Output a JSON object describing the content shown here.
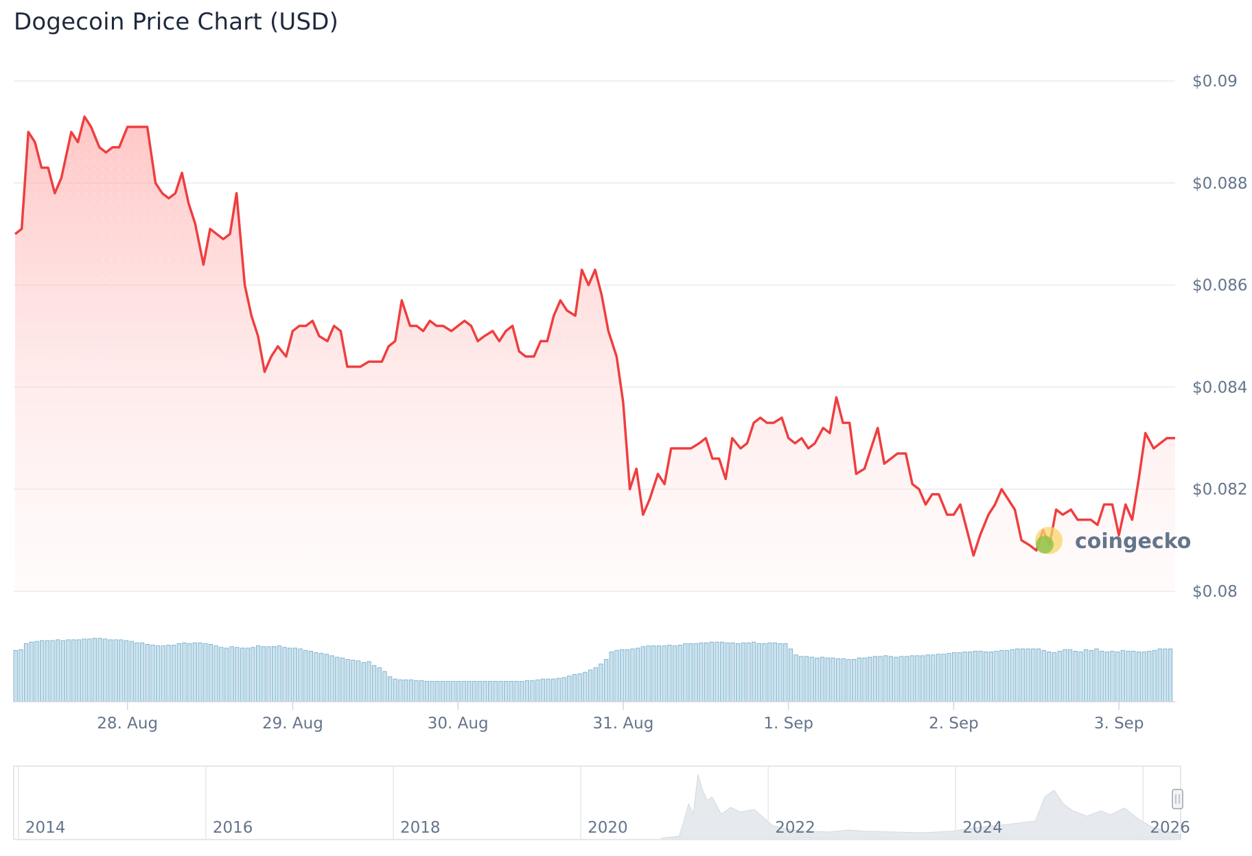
{
  "title": "Dogecoin Price Chart (USD)",
  "brand": "coingecko",
  "colors": {
    "line": "#ef3e3e",
    "fill": "#ffcccc",
    "volume": "#9cc8de",
    "grid": "#e5e7eb"
  },
  "chart_data": {
    "type": "line",
    "title": "Dogecoin Price Chart (USD)",
    "xlabel": "",
    "ylabel": "",
    "ylim": [
      0.08,
      0.09
    ],
    "yticks": [
      "$0.09",
      "$0.088",
      "$0.086",
      "$0.084",
      "$0.082",
      "$0.08"
    ],
    "ytick_values": [
      0.09,
      0.088,
      0.086,
      0.084,
      0.082,
      0.08
    ],
    "xticks": [
      "28. Aug",
      "29. Aug",
      "30. Aug",
      "31. Aug",
      "1. Sep",
      "2. Sep",
      "3. Sep"
    ],
    "x_range_days": [
      -0.68,
      6.34
    ],
    "grid": true,
    "series": [
      {
        "values": [
          [
            -0.68,
            0.087
          ],
          [
            -0.64,
            0.0871
          ],
          [
            -0.6,
            0.089
          ],
          [
            -0.56,
            0.0888
          ],
          [
            -0.52,
            0.0883
          ],
          [
            -0.48,
            0.0883
          ],
          [
            -0.44,
            0.0878
          ],
          [
            -0.4,
            0.0881
          ],
          [
            -0.34,
            0.089
          ],
          [
            -0.3,
            0.0888
          ],
          [
            -0.26,
            0.0893
          ],
          [
            -0.22,
            0.0891
          ],
          [
            -0.17,
            0.0887
          ],
          [
            -0.13,
            0.0886
          ],
          [
            -0.09,
            0.0887
          ],
          [
            -0.05,
            0.0887
          ],
          [
            0.0,
            0.0891
          ],
          [
            0.04,
            0.0891
          ],
          [
            0.08,
            0.0891
          ],
          [
            0.12,
            0.0891
          ],
          [
            0.17,
            0.088
          ],
          [
            0.21,
            0.0878
          ],
          [
            0.25,
            0.0877
          ],
          [
            0.29,
            0.0878
          ],
          [
            0.33,
            0.0882
          ],
          [
            0.37,
            0.0876
          ],
          [
            0.41,
            0.0872
          ],
          [
            0.46,
            0.0864
          ],
          [
            0.5,
            0.0871
          ],
          [
            0.54,
            0.087
          ],
          [
            0.58,
            0.0869
          ],
          [
            0.62,
            0.087
          ],
          [
            0.66,
            0.0878
          ],
          [
            0.71,
            0.086
          ],
          [
            0.75,
            0.0854
          ],
          [
            0.79,
            0.085
          ],
          [
            0.83,
            0.0843
          ],
          [
            0.87,
            0.0846
          ],
          [
            0.91,
            0.0848
          ],
          [
            0.96,
            0.0846
          ],
          [
            1.0,
            0.0851
          ],
          [
            1.04,
            0.0852
          ],
          [
            1.08,
            0.0852
          ],
          [
            1.12,
            0.0853
          ],
          [
            1.16,
            0.085
          ],
          [
            1.21,
            0.0849
          ],
          [
            1.25,
            0.0852
          ],
          [
            1.29,
            0.0851
          ],
          [
            1.33,
            0.0844
          ],
          [
            1.37,
            0.0844
          ],
          [
            1.41,
            0.0844
          ],
          [
            1.46,
            0.0845
          ],
          [
            1.5,
            0.0845
          ],
          [
            1.54,
            0.0845
          ],
          [
            1.58,
            0.0848
          ],
          [
            1.62,
            0.0849
          ],
          [
            1.66,
            0.0857
          ],
          [
            1.71,
            0.0852
          ],
          [
            1.75,
            0.0852
          ],
          [
            1.79,
            0.0851
          ],
          [
            1.83,
            0.0853
          ],
          [
            1.87,
            0.0852
          ],
          [
            1.91,
            0.0852
          ],
          [
            1.96,
            0.0851
          ],
          [
            2.0,
            0.0852
          ],
          [
            2.04,
            0.0853
          ],
          [
            2.08,
            0.0852
          ],
          [
            2.12,
            0.0849
          ],
          [
            2.16,
            0.085
          ],
          [
            2.21,
            0.0851
          ],
          [
            2.25,
            0.0849
          ],
          [
            2.29,
            0.0851
          ],
          [
            2.33,
            0.0852
          ],
          [
            2.37,
            0.0847
          ],
          [
            2.41,
            0.0846
          ],
          [
            2.46,
            0.0846
          ],
          [
            2.5,
            0.0849
          ],
          [
            2.54,
            0.0849
          ],
          [
            2.58,
            0.0854
          ],
          [
            2.62,
            0.0857
          ],
          [
            2.66,
            0.0855
          ],
          [
            2.71,
            0.0854
          ],
          [
            2.75,
            0.0863
          ],
          [
            2.79,
            0.086
          ],
          [
            2.83,
            0.0863
          ],
          [
            2.87,
            0.0858
          ],
          [
            2.91,
            0.0851
          ],
          [
            2.96,
            0.0846
          ],
          [
            3.0,
            0.0837
          ],
          [
            3.04,
            0.082
          ],
          [
            3.08,
            0.0824
          ],
          [
            3.12,
            0.0815
          ],
          [
            3.16,
            0.0818
          ],
          [
            3.21,
            0.0823
          ],
          [
            3.25,
            0.0821
          ],
          [
            3.29,
            0.0828
          ],
          [
            3.33,
            0.0828
          ],
          [
            3.37,
            0.0828
          ],
          [
            3.41,
            0.0828
          ],
          [
            3.46,
            0.0829
          ],
          [
            3.5,
            0.083
          ],
          [
            3.54,
            0.0826
          ],
          [
            3.58,
            0.0826
          ],
          [
            3.62,
            0.0822
          ],
          [
            3.66,
            0.083
          ],
          [
            3.71,
            0.0828
          ],
          [
            3.75,
            0.0829
          ],
          [
            3.79,
            0.0833
          ],
          [
            3.83,
            0.0834
          ],
          [
            3.87,
            0.0833
          ],
          [
            3.91,
            0.0833
          ],
          [
            3.96,
            0.0834
          ],
          [
            4.0,
            0.083
          ],
          [
            4.04,
            0.0829
          ],
          [
            4.08,
            0.083
          ],
          [
            4.12,
            0.0828
          ],
          [
            4.16,
            0.0829
          ],
          [
            4.21,
            0.0832
          ],
          [
            4.25,
            0.0831
          ],
          [
            4.29,
            0.0838
          ],
          [
            4.33,
            0.0833
          ],
          [
            4.37,
            0.0833
          ],
          [
            4.41,
            0.0823
          ],
          [
            4.46,
            0.0824
          ],
          [
            4.5,
            0.0828
          ],
          [
            4.54,
            0.0832
          ],
          [
            4.58,
            0.0825
          ],
          [
            4.62,
            0.0826
          ],
          [
            4.66,
            0.0827
          ],
          [
            4.71,
            0.0827
          ],
          [
            4.75,
            0.0821
          ],
          [
            4.79,
            0.082
          ],
          [
            4.83,
            0.0817
          ],
          [
            4.87,
            0.0819
          ],
          [
            4.91,
            0.0819
          ],
          [
            4.96,
            0.0815
          ],
          [
            5.0,
            0.0815
          ],
          [
            5.04,
            0.0817
          ],
          [
            5.08,
            0.0812
          ],
          [
            5.12,
            0.0807
          ],
          [
            5.16,
            0.0811
          ],
          [
            5.21,
            0.0815
          ],
          [
            5.25,
            0.0817
          ],
          [
            5.29,
            0.082
          ],
          [
            5.33,
            0.0818
          ],
          [
            5.37,
            0.0816
          ],
          [
            5.41,
            0.081
          ],
          [
            5.46,
            0.0809
          ],
          [
            5.5,
            0.0808
          ],
          [
            5.54,
            0.0812
          ],
          [
            5.58,
            0.0809
          ],
          [
            5.62,
            0.0816
          ],
          [
            5.66,
            0.0815
          ],
          [
            5.71,
            0.0816
          ],
          [
            5.75,
            0.0814
          ],
          [
            5.79,
            0.0814
          ],
          [
            5.83,
            0.0814
          ],
          [
            5.87,
            0.0813
          ],
          [
            5.91,
            0.0817
          ],
          [
            5.96,
            0.0817
          ],
          [
            6.0,
            0.0811
          ],
          [
            6.04,
            0.0817
          ],
          [
            6.08,
            0.0814
          ],
          [
            6.12,
            0.0822
          ],
          [
            6.16,
            0.0831
          ],
          [
            6.21,
            0.0828
          ],
          [
            6.25,
            0.0829
          ],
          [
            6.29,
            0.083
          ],
          [
            6.34,
            0.083
          ]
        ]
      }
    ],
    "volume_relative": [
      0.68,
      0.69,
      0.77,
      0.79,
      0.8,
      0.81,
      0.81,
      0.81,
      0.82,
      0.81,
      0.82,
      0.82,
      0.82,
      0.83,
      0.83,
      0.84,
      0.84,
      0.83,
      0.82,
      0.82,
      0.82,
      0.81,
      0.8,
      0.78,
      0.78,
      0.76,
      0.75,
      0.74,
      0.74,
      0.75,
      0.75,
      0.77,
      0.78,
      0.77,
      0.78,
      0.78,
      0.77,
      0.76,
      0.74,
      0.72,
      0.71,
      0.73,
      0.72,
      0.71,
      0.71,
      0.72,
      0.74,
      0.73,
      0.73,
      0.73,
      0.74,
      0.72,
      0.71,
      0.71,
      0.7,
      0.68,
      0.67,
      0.65,
      0.64,
      0.63,
      0.61,
      0.59,
      0.58,
      0.56,
      0.55,
      0.54,
      0.52,
      0.53,
      0.48,
      0.45,
      0.4,
      0.33,
      0.3,
      0.29,
      0.29,
      0.29,
      0.28,
      0.28,
      0.27,
      0.27,
      0.27,
      0.27,
      0.27,
      0.27,
      0.27,
      0.27,
      0.27,
      0.27,
      0.27,
      0.27,
      0.27,
      0.27,
      0.27,
      0.27,
      0.27,
      0.27,
      0.27,
      0.28,
      0.28,
      0.29,
      0.3,
      0.3,
      0.3,
      0.31,
      0.32,
      0.34,
      0.36,
      0.37,
      0.39,
      0.42,
      0.45,
      0.5,
      0.56,
      0.66,
      0.68,
      0.69,
      0.69,
      0.7,
      0.71,
      0.73,
      0.74,
      0.74,
      0.74,
      0.74,
      0.75,
      0.74,
      0.75,
      0.77,
      0.77,
      0.77,
      0.78,
      0.78,
      0.79,
      0.79,
      0.79,
      0.78,
      0.78,
      0.77,
      0.78,
      0.78,
      0.79,
      0.77,
      0.77,
      0.78,
      0.78,
      0.77,
      0.77,
      0.7,
      0.62,
      0.6,
      0.6,
      0.59,
      0.58,
      0.59,
      0.58,
      0.58,
      0.57,
      0.57,
      0.56,
      0.56,
      0.58,
      0.58,
      0.59,
      0.6,
      0.6,
      0.61,
      0.6,
      0.59,
      0.6,
      0.6,
      0.61,
      0.61,
      0.61,
      0.62,
      0.62,
      0.63,
      0.63,
      0.64,
      0.65,
      0.65,
      0.66,
      0.66,
      0.67,
      0.67,
      0.66,
      0.66,
      0.67,
      0.68,
      0.68,
      0.69,
      0.7,
      0.7,
      0.7,
      0.7,
      0.7,
      0.68,
      0.66,
      0.65,
      0.67,
      0.69,
      0.69,
      0.67,
      0.66,
      0.69,
      0.68,
      0.7,
      0.67,
      0.66,
      0.67,
      0.66,
      0.68,
      0.67,
      0.67,
      0.66,
      0.66,
      0.67,
      0.68,
      0.7,
      0.7,
      0.7
    ],
    "navigator": {
      "labels": [
        "2014",
        "2016",
        "2018",
        "2020",
        "2022",
        "2024",
        "2026"
      ],
      "history_relative": [
        [
          2020.8,
          0.0
        ],
        [
          2021.0,
          0.03
        ],
        [
          2021.05,
          0.25
        ],
        [
          2021.1,
          0.5
        ],
        [
          2021.15,
          0.35
        ],
        [
          2021.2,
          0.93
        ],
        [
          2021.25,
          0.7
        ],
        [
          2021.3,
          0.55
        ],
        [
          2021.35,
          0.6
        ],
        [
          2021.45,
          0.35
        ],
        [
          2021.55,
          0.45
        ],
        [
          2021.65,
          0.38
        ],
        [
          2021.8,
          0.42
        ],
        [
          2021.9,
          0.3
        ],
        [
          2022.0,
          0.18
        ],
        [
          2022.2,
          0.12
        ],
        [
          2022.4,
          0.1
        ],
        [
          2022.6,
          0.09
        ],
        [
          2022.8,
          0.12
        ],
        [
          2023.0,
          0.1
        ],
        [
          2023.3,
          0.09
        ],
        [
          2023.6,
          0.08
        ],
        [
          2023.9,
          0.1
        ],
        [
          2024.2,
          0.16
        ],
        [
          2024.5,
          0.2
        ],
        [
          2024.8,
          0.25
        ],
        [
          2024.9,
          0.6
        ],
        [
          2025.0,
          0.7
        ],
        [
          2025.1,
          0.5
        ],
        [
          2025.2,
          0.4
        ],
        [
          2025.35,
          0.32
        ],
        [
          2025.5,
          0.4
        ],
        [
          2025.6,
          0.34
        ],
        [
          2025.75,
          0.44
        ],
        [
          2025.9,
          0.28
        ],
        [
          2026.05,
          0.16
        ],
        [
          2026.25,
          0.08
        ],
        [
          2026.35,
          0.05
        ]
      ]
    }
  }
}
